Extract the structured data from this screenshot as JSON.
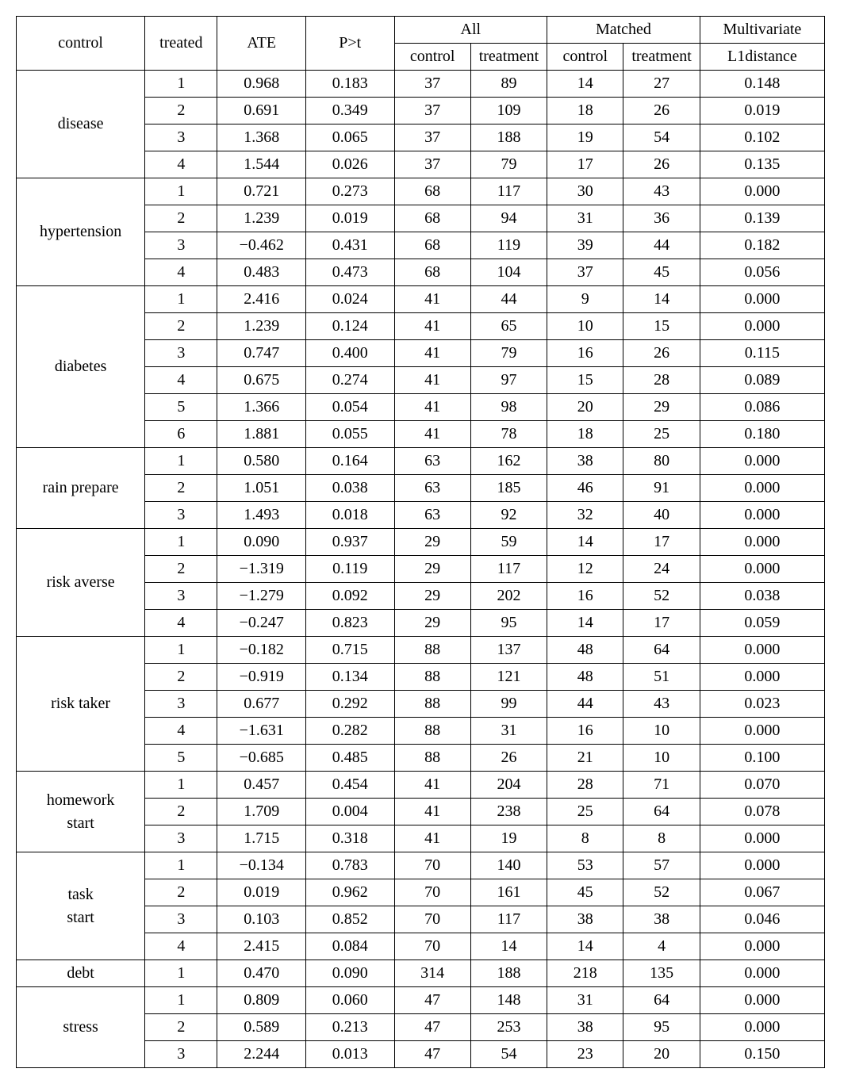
{
  "header": {
    "control": "control",
    "treated": "treated",
    "ate": "ATE",
    "pt": "P>t",
    "all": "All",
    "matched": "Matched",
    "sub_control": "control",
    "sub_treatment": "treatment",
    "multi": "Multivariate",
    "l1": "L1distance"
  },
  "groups": [
    {
      "label": "disease",
      "rows": [
        {
          "t": "1",
          "ate": "0.968",
          "pt": "0.183",
          "ac": "37",
          "at": "89",
          "mc": "14",
          "mt": "27",
          "l1": "0.148"
        },
        {
          "t": "2",
          "ate": "0.691",
          "pt": "0.349",
          "ac": "37",
          "at": "109",
          "mc": "18",
          "mt": "26",
          "l1": "0.019"
        },
        {
          "t": "3",
          "ate": "1.368",
          "pt": "0.065",
          "ac": "37",
          "at": "188",
          "mc": "19",
          "mt": "54",
          "l1": "0.102"
        },
        {
          "t": "4",
          "ate": "1.544",
          "pt": "0.026",
          "ac": "37",
          "at": "79",
          "mc": "17",
          "mt": "26",
          "l1": "0.135"
        }
      ]
    },
    {
      "label": "hypertension",
      "rows": [
        {
          "t": "1",
          "ate": "0.721",
          "pt": "0.273",
          "ac": "68",
          "at": "117",
          "mc": "30",
          "mt": "43",
          "l1": "0.000"
        },
        {
          "t": "2",
          "ate": "1.239",
          "pt": "0.019",
          "ac": "68",
          "at": "94",
          "mc": "31",
          "mt": "36",
          "l1": "0.139"
        },
        {
          "t": "3",
          "ate": "−0.462",
          "pt": "0.431",
          "ac": "68",
          "at": "119",
          "mc": "39",
          "mt": "44",
          "l1": "0.182"
        },
        {
          "t": "4",
          "ate": "0.483",
          "pt": "0.473",
          "ac": "68",
          "at": "104",
          "mc": "37",
          "mt": "45",
          "l1": "0.056"
        }
      ]
    },
    {
      "label": "diabetes",
      "rows": [
        {
          "t": "1",
          "ate": "2.416",
          "pt": "0.024",
          "ac": "41",
          "at": "44",
          "mc": "9",
          "mt": "14",
          "l1": "0.000"
        },
        {
          "t": "2",
          "ate": "1.239",
          "pt": "0.124",
          "ac": "41",
          "at": "65",
          "mc": "10",
          "mt": "15",
          "l1": "0.000"
        },
        {
          "t": "3",
          "ate": "0.747",
          "pt": "0.400",
          "ac": "41",
          "at": "79",
          "mc": "16",
          "mt": "26",
          "l1": "0.115"
        },
        {
          "t": "4",
          "ate": "0.675",
          "pt": "0.274",
          "ac": "41",
          "at": "97",
          "mc": "15",
          "mt": "28",
          "l1": "0.089"
        },
        {
          "t": "5",
          "ate": "1.366",
          "pt": "0.054",
          "ac": "41",
          "at": "98",
          "mc": "20",
          "mt": "29",
          "l1": "0.086"
        },
        {
          "t": "6",
          "ate": "1.881",
          "pt": "0.055",
          "ac": "41",
          "at": "78",
          "mc": "18",
          "mt": "25",
          "l1": "0.180"
        }
      ]
    },
    {
      "label": "rain prepare",
      "rows": [
        {
          "t": "1",
          "ate": "0.580",
          "pt": "0.164",
          "ac": "63",
          "at": "162",
          "mc": "38",
          "mt": "80",
          "l1": "0.000"
        },
        {
          "t": "2",
          "ate": "1.051",
          "pt": "0.038",
          "ac": "63",
          "at": "185",
          "mc": "46",
          "mt": "91",
          "l1": "0.000"
        },
        {
          "t": "3",
          "ate": "1.493",
          "pt": "0.018",
          "ac": "63",
          "at": "92",
          "mc": "32",
          "mt": "40",
          "l1": "0.000"
        }
      ]
    },
    {
      "label": "risk averse",
      "rows": [
        {
          "t": "1",
          "ate": "0.090",
          "pt": "0.937",
          "ac": "29",
          "at": "59",
          "mc": "14",
          "mt": "17",
          "l1": "0.000"
        },
        {
          "t": "2",
          "ate": "−1.319",
          "pt": "0.119",
          "ac": "29",
          "at": "117",
          "mc": "12",
          "mt": "24",
          "l1": "0.000"
        },
        {
          "t": "3",
          "ate": "−1.279",
          "pt": "0.092",
          "ac": "29",
          "at": "202",
          "mc": "16",
          "mt": "52",
          "l1": "0.038"
        },
        {
          "t": "4",
          "ate": "−0.247",
          "pt": "0.823",
          "ac": "29",
          "at": "95",
          "mc": "14",
          "mt": "17",
          "l1": "0.059"
        }
      ]
    },
    {
      "label": "risk taker",
      "rows": [
        {
          "t": "1",
          "ate": "−0.182",
          "pt": "0.715",
          "ac": "88",
          "at": "137",
          "mc": "48",
          "mt": "64",
          "l1": "0.000"
        },
        {
          "t": "2",
          "ate": "−0.919",
          "pt": "0.134",
          "ac": "88",
          "at": "121",
          "mc": "48",
          "mt": "51",
          "l1": "0.000"
        },
        {
          "t": "3",
          "ate": "0.677",
          "pt": "0.292",
          "ac": "88",
          "at": "99",
          "mc": "44",
          "mt": "43",
          "l1": "0.023"
        },
        {
          "t": "4",
          "ate": "−1.631",
          "pt": "0.282",
          "ac": "88",
          "at": "31",
          "mc": "16",
          "mt": "10",
          "l1": "0.000"
        },
        {
          "t": "5",
          "ate": "−0.685",
          "pt": "0.485",
          "ac": "88",
          "at": "26",
          "mc": "21",
          "mt": "10",
          "l1": "0.100"
        }
      ]
    },
    {
      "label": "homework start",
      "twoLine": true,
      "line1": "homework",
      "line2": "start",
      "rows": [
        {
          "t": "1",
          "ate": "0.457",
          "pt": "0.454",
          "ac": "41",
          "at": "204",
          "mc": "28",
          "mt": "71",
          "l1": "0.070"
        },
        {
          "t": "2",
          "ate": "1.709",
          "pt": "0.004",
          "ac": "41",
          "at": "238",
          "mc": "25",
          "mt": "64",
          "l1": "0.078"
        },
        {
          "t": "3",
          "ate": "1.715",
          "pt": "0.318",
          "ac": "41",
          "at": "19",
          "mc": "8",
          "mt": "8",
          "l1": "0.000"
        }
      ]
    },
    {
      "label": "task start",
      "twoLine": true,
      "line1": "task",
      "line2": "start",
      "rows": [
        {
          "t": "1",
          "ate": "−0.134",
          "pt": "0.783",
          "ac": "70",
          "at": "140",
          "mc": "53",
          "mt": "57",
          "l1": "0.000"
        },
        {
          "t": "2",
          "ate": "0.019",
          "pt": "0.962",
          "ac": "70",
          "at": "161",
          "mc": "45",
          "mt": "52",
          "l1": "0.067"
        },
        {
          "t": "3",
          "ate": "0.103",
          "pt": "0.852",
          "ac": "70",
          "at": "117",
          "mc": "38",
          "mt": "38",
          "l1": "0.046"
        },
        {
          "t": "4",
          "ate": "2.415",
          "pt": "0.084",
          "ac": "70",
          "at": "14",
          "mc": "14",
          "mt": "4",
          "l1": "0.000"
        }
      ]
    },
    {
      "label": "debt",
      "rows": [
        {
          "t": "1",
          "ate": "0.470",
          "pt": "0.090",
          "ac": "314",
          "at": "188",
          "mc": "218",
          "mt": "135",
          "l1": "0.000"
        }
      ]
    },
    {
      "label": "stress",
      "rows": [
        {
          "t": "1",
          "ate": "0.809",
          "pt": "0.060",
          "ac": "47",
          "at": "148",
          "mc": "31",
          "mt": "64",
          "l1": "0.000"
        },
        {
          "t": "2",
          "ate": "0.589",
          "pt": "0.213",
          "ac": "47",
          "at": "253",
          "mc": "38",
          "mt": "95",
          "l1": "0.000"
        },
        {
          "t": "3",
          "ate": "2.244",
          "pt": "0.013",
          "ac": "47",
          "at": "54",
          "mc": "23",
          "mt": "20",
          "l1": "0.150"
        }
      ]
    }
  ]
}
